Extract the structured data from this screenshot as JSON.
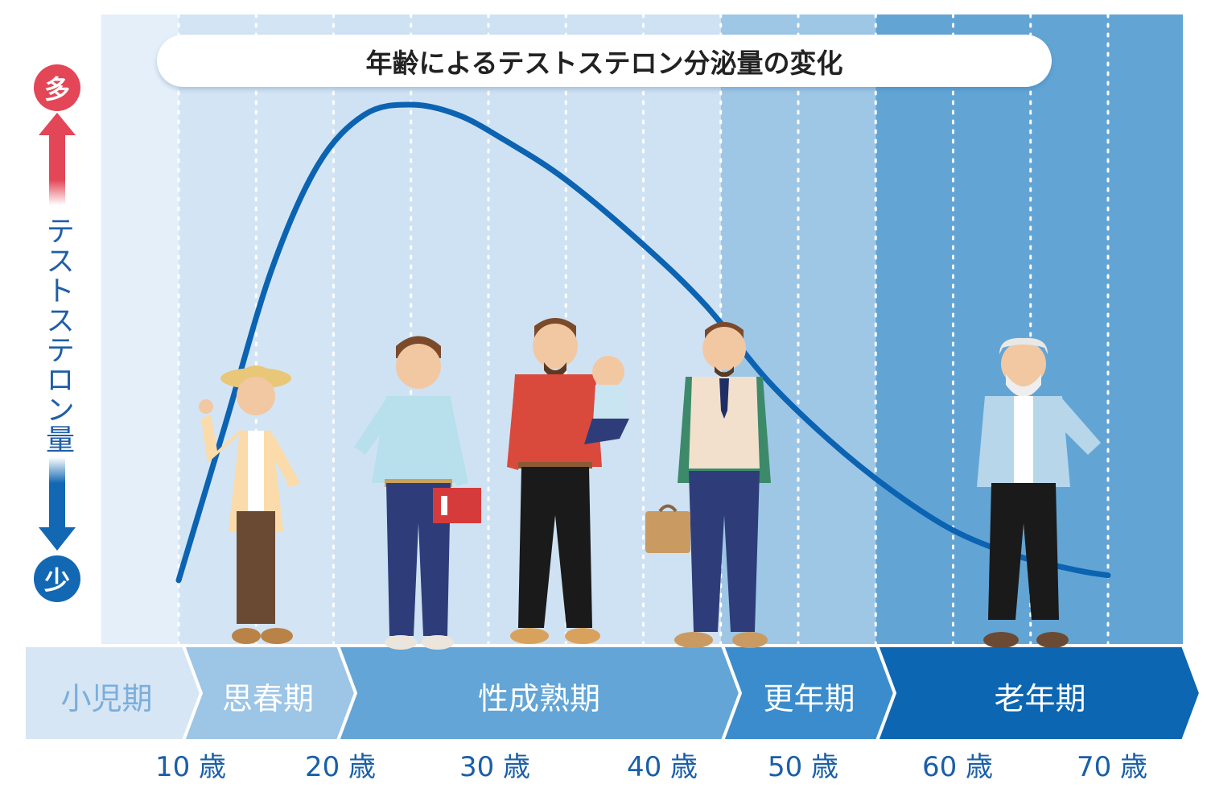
{
  "chart_data": {
    "type": "line",
    "title": "年齢によるテストステロン分泌量の変化",
    "ylabel": "テストステロン量",
    "y_high_label": "多",
    "y_low_label": "少",
    "x_ticks": [
      "10 歳",
      "20 歳",
      "30 歳",
      "40 歳",
      "50 歳",
      "60 歳",
      "70 歳"
    ],
    "xlim": [
      10,
      70
    ],
    "ylim": [
      0,
      100
    ],
    "series": [
      {
        "values": [
          {
            "x": 10,
            "y": 5
          },
          {
            "x": 13,
            "y": 36
          },
          {
            "x": 16,
            "y": 67
          },
          {
            "x": 19,
            "y": 88
          },
          {
            "x": 22,
            "y": 98
          },
          {
            "x": 25,
            "y": 100
          },
          {
            "x": 28,
            "y": 98
          },
          {
            "x": 31,
            "y": 93
          },
          {
            "x": 35,
            "y": 85
          },
          {
            "x": 40,
            "y": 72
          },
          {
            "x": 44,
            "y": 60
          },
          {
            "x": 48,
            "y": 45
          },
          {
            "x": 52,
            "y": 33
          },
          {
            "x": 56,
            "y": 23
          },
          {
            "x": 60,
            "y": 15
          },
          {
            "x": 64,
            "y": 10
          },
          {
            "x": 68,
            "y": 7
          },
          {
            "x": 70,
            "y": 6
          }
        ]
      }
    ],
    "stages": [
      {
        "label": "小児期",
        "from_age": 5,
        "to_age": 10
      },
      {
        "label": "思春期",
        "from_age": 10,
        "to_age": 20
      },
      {
        "label": "性成熟期",
        "from_age": 20,
        "to_age": 45
      },
      {
        "label": "更年期",
        "from_age": 45,
        "to_age": 55
      },
      {
        "label": "老年期",
        "from_age": 55,
        "to_age": 75
      }
    ],
    "grid": true
  },
  "colors": {
    "curve": "#0b63b2",
    "high": "#e34656",
    "low": "#1268b3",
    "stage_backgrounds": [
      "#e4eff9",
      "#d3e5f4",
      "#cfe2f3",
      "#9ec7e6",
      "#62a5d5"
    ],
    "stage_arrows": [
      "#d6e6f4",
      "#9cc5e6",
      "#62a5d6",
      "#3b8ccc",
      "#0c66b2"
    ]
  },
  "figures": [
    "boy-in-hat",
    "young-man-with-book",
    "father-with-baby",
    "man-with-briefcase",
    "elderly-man"
  ]
}
